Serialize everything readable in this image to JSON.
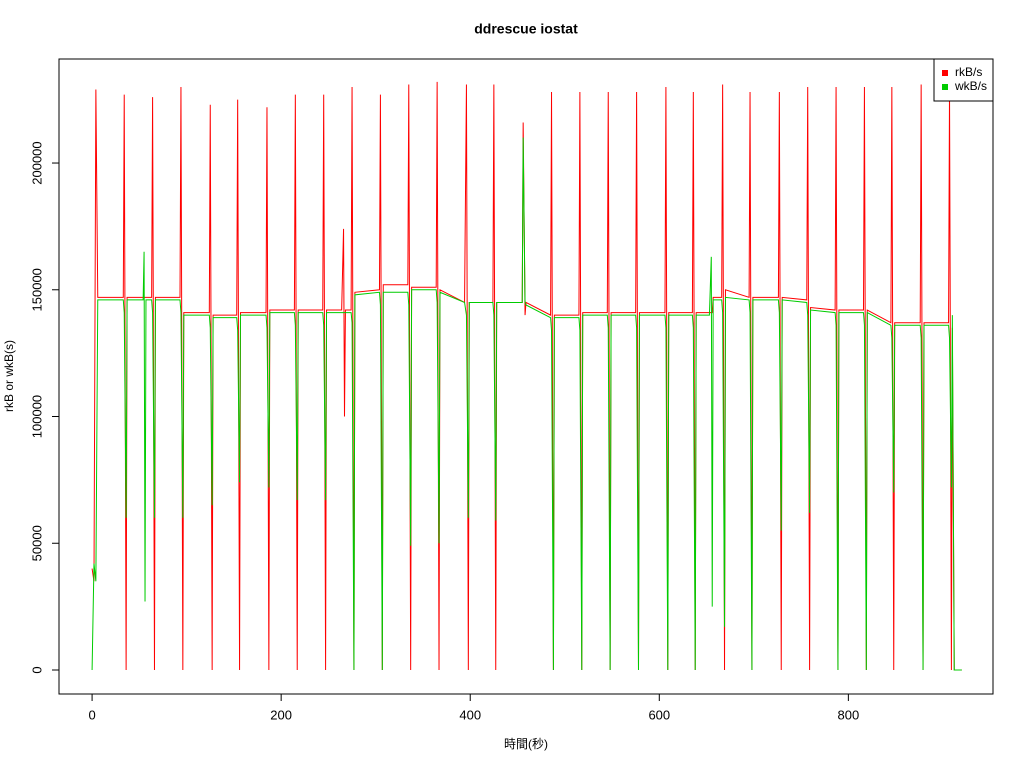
{
  "chart_data": {
    "type": "line",
    "title": "ddrescue iostat",
    "x_label": "時間(秒)",
    "y_label": "rkB or wkB(s)",
    "x": [
      0,
      2,
      4,
      6,
      33,
      34,
      36,
      37,
      54,
      55,
      56,
      57,
      63,
      64,
      66,
      67,
      93,
      94,
      96,
      97,
      124,
      125,
      127,
      128,
      153,
      154,
      156,
      157,
      184,
      185,
      187,
      188,
      214,
      215,
      217,
      218,
      244,
      245,
      247,
      248,
      264,
      266,
      267,
      268,
      274,
      275,
      277,
      278,
      304,
      305,
      307,
      308,
      334,
      335,
      337,
      338,
      364,
      365,
      367,
      368,
      394,
      396,
      398,
      399,
      424,
      425,
      427,
      428,
      455,
      456,
      458,
      459,
      485,
      486,
      488,
      489,
      515,
      516,
      518,
      519,
      545,
      546,
      548,
      549,
      575,
      576,
      578,
      579,
      606,
      607,
      609,
      610,
      635,
      636,
      638,
      639,
      653,
      655,
      656,
      657,
      666,
      667,
      669,
      670,
      695,
      696,
      698,
      699,
      726,
      727,
      729,
      730,
      756,
      757,
      759,
      760,
      786,
      787,
      789,
      790,
      816,
      817,
      819,
      820,
      845,
      846,
      848,
      849,
      876,
      877,
      879,
      880,
      906,
      907,
      909,
      910,
      912,
      920
    ],
    "series": [
      {
        "name": "rkB/s",
        "color": "#ff0000",
        "values": [
          40000,
          35000,
          229000,
          147000,
          147000,
          227000,
          0,
          147000,
          147000,
          147000,
          147000,
          147000,
          147000,
          226000,
          0,
          147000,
          147000,
          230000,
          0,
          141000,
          141000,
          223000,
          0,
          140000,
          140000,
          225000,
          0,
          141000,
          141000,
          222000,
          0,
          142000,
          142000,
          227000,
          0,
          142000,
          142000,
          227000,
          0,
          142000,
          142000,
          174000,
          100000,
          142000,
          142000,
          230000,
          0,
          149000,
          150000,
          227000,
          0,
          152000,
          152000,
          231000,
          0,
          151000,
          151000,
          232000,
          0,
          150000,
          145000,
          231000,
          0,
          145000,
          145000,
          231000,
          0,
          145000,
          145000,
          216000,
          140000,
          145000,
          140000,
          228000,
          0,
          140000,
          140000,
          228000,
          0,
          141000,
          141000,
          228000,
          0,
          141000,
          141000,
          228000,
          0,
          141000,
          141000,
          230000,
          0,
          141000,
          141000,
          228000,
          0,
          141000,
          141000,
          141000,
          141000,
          147000,
          147000,
          231000,
          0,
          150000,
          147000,
          228000,
          0,
          147000,
          147000,
          228000,
          0,
          147000,
          146000,
          230000,
          0,
          143000,
          142000,
          230000,
          0,
          142000,
          142000,
          230000,
          0,
          142000,
          137000,
          230000,
          0,
          137000,
          137000,
          231000,
          0,
          137000,
          137000,
          229000,
          0,
          135000,
          0,
          0
        ]
      },
      {
        "name": "wkB/s",
        "color": "#00cc00",
        "values": [
          0,
          42000,
          35000,
          146000,
          146000,
          141000,
          60000,
          146000,
          146000,
          165000,
          27000,
          146000,
          146000,
          141000,
          60000,
          146000,
          146000,
          141000,
          60000,
          140000,
          140000,
          135000,
          65000,
          139000,
          139000,
          134000,
          74000,
          140000,
          140000,
          135000,
          72000,
          141000,
          141000,
          136000,
          67000,
          141000,
          141000,
          136000,
          67000,
          141000,
          141000,
          141000,
          141000,
          141000,
          141000,
          137000,
          0,
          148000,
          149000,
          144000,
          0,
          149000,
          149000,
          144000,
          49000,
          150000,
          150000,
          145000,
          50000,
          149000,
          145000,
          140000,
          60000,
          145000,
          145000,
          140000,
          59000,
          145000,
          145000,
          210000,
          145000,
          144000,
          139000,
          134000,
          0,
          139000,
          139000,
          134000,
          0,
          140000,
          140000,
          135000,
          0,
          140000,
          140000,
          135000,
          0,
          140000,
          140000,
          135000,
          0,
          140000,
          140000,
          135000,
          0,
          140000,
          140000,
          163000,
          25000,
          146000,
          146000,
          141000,
          17000,
          147000,
          146000,
          141000,
          0,
          146000,
          146000,
          141000,
          55000,
          146000,
          145000,
          140000,
          62000,
          142000,
          141000,
          136000,
          0,
          141000,
          141000,
          136000,
          0,
          141000,
          136000,
          131000,
          70000,
          136000,
          136000,
          131000,
          0,
          136000,
          136000,
          131000,
          72000,
          140000,
          0,
          0
        ]
      }
    ],
    "xlim": [
      -35,
      953
    ],
    "ylim": [
      -9470,
      241040
    ],
    "xticks": [
      0,
      200,
      400,
      600,
      800
    ],
    "yticks": [
      0,
      50000,
      100000,
      150000,
      200000
    ],
    "legend": "top-right"
  }
}
